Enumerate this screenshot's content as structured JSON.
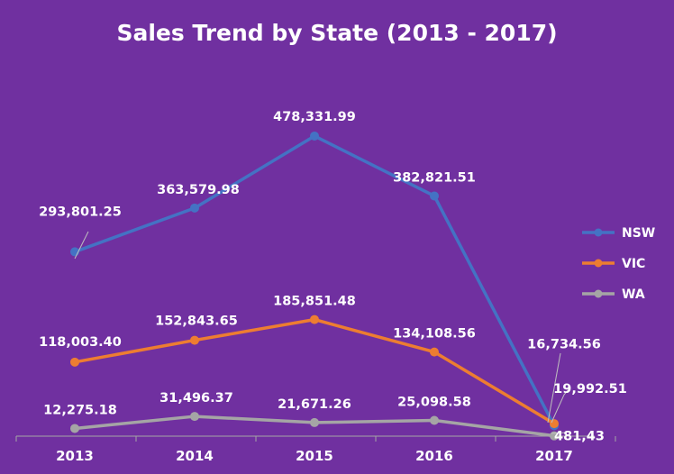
{
  "chart_data": {
    "type": "line",
    "title": "Sales Trend by State (2013 - 2017)",
    "xlabel": "",
    "ylabel": "",
    "categories": [
      "2013",
      "2014",
      "2015",
      "2016",
      "2017"
    ],
    "series": [
      {
        "name": "NSW",
        "color": "#4472c4",
        "values": [
          293801.25,
          363579.98,
          478331.99,
          382821.51,
          16734.56
        ],
        "labels": [
          "293,801.25",
          "363,579.98",
          "478,331.99",
          "382,821.51",
          "16,734.56"
        ]
      },
      {
        "name": "VIC",
        "color": "#ed7d31",
        "values": [
          118003.4,
          152843.65,
          185851.48,
          134108.56,
          19992.51
        ],
        "labels": [
          "118,003.40",
          "152,843.65",
          "185,851.48",
          "134,108.56",
          "19,992.51"
        ]
      },
      {
        "name": "WA",
        "color": "#a5a5a5",
        "values": [
          12275.18,
          31496.37,
          21671.26,
          25098.58,
          481.43
        ],
        "labels": [
          "12,275.18",
          "31,496.37",
          "21,671.26",
          "25,098.58",
          "481,43"
        ]
      }
    ],
    "ylim": [
      0,
      540000
    ],
    "grid": false,
    "legend": "right"
  }
}
